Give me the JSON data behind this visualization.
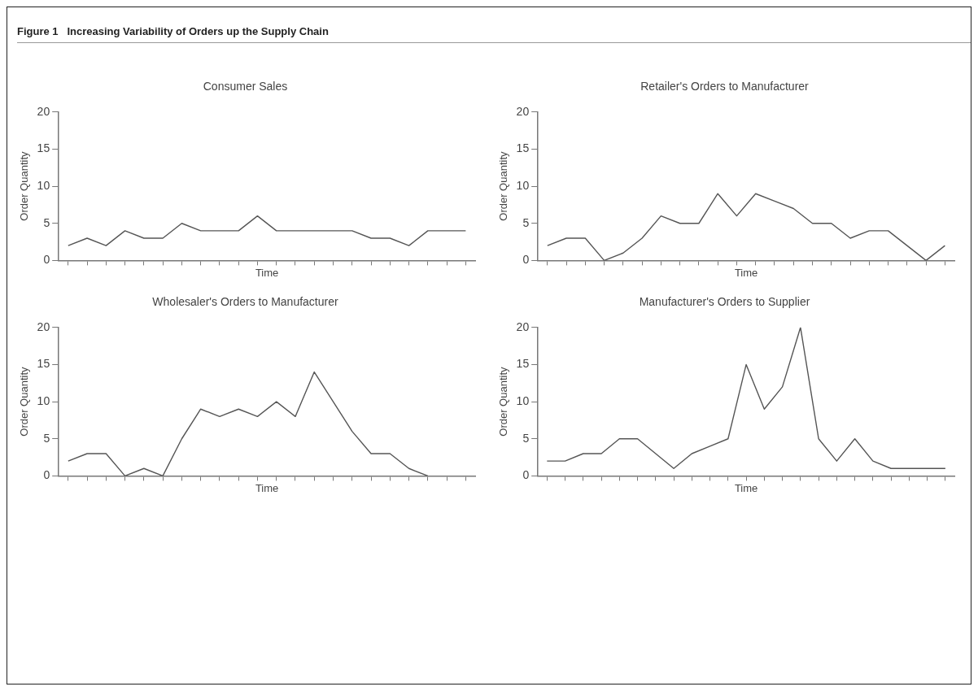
{
  "chart_data": [
    {
      "type": "line",
      "title": "Consumer Sales",
      "xlabel": "Time",
      "ylabel": "Order Quantity",
      "annotations": [
        "Figure 1   Increasing Variability of Orders up the Supply Chain"
      ],
      "categories": [
        null,
        null,
        null,
        null,
        null,
        null,
        null,
        null,
        null,
        null,
        null,
        null,
        null,
        null,
        null,
        null,
        null,
        null,
        null,
        null,
        null,
        null
      ],
      "series": [
        {
          "color": "#555555",
          "values": [
            2,
            3,
            2,
            4,
            3,
            3,
            5,
            4,
            4,
            4,
            6,
            4,
            4,
            4,
            4,
            4,
            3,
            3,
            2,
            4,
            4,
            4
          ]
        }
      ],
      "ylim": [
        0,
        20
      ],
      "yticks": [
        0,
        5,
        10,
        15,
        20
      ],
      "tick_labels": "y",
      "marker": "none"
    },
    {
      "type": "line",
      "title": "Retailer's Orders to Manufacturer",
      "xlabel": "Time",
      "ylabel": "Order Quantity",
      "categories": [
        null,
        null,
        null,
        null,
        null,
        null,
        null,
        null,
        null,
        null,
        null,
        null,
        null,
        null,
        null,
        null,
        null,
        null,
        null,
        null,
        null,
        null
      ],
      "series": [
        {
          "color": "#555555",
          "values": [
            2,
            3,
            3,
            0,
            1,
            3,
            6,
            5,
            5,
            9,
            6,
            9,
            8,
            7,
            5,
            5,
            3,
            4,
            4,
            2,
            0,
            2
          ]
        }
      ],
      "ylim": [
        0,
        20
      ],
      "yticks": [
        0,
        5,
        10,
        15,
        20
      ],
      "tick_labels": "y",
      "marker": "none"
    },
    {
      "type": "line",
      "title": "Wholesaler's Orders to Manufacturer",
      "xlabel": "Time",
      "ylabel": "Order Quantity",
      "categories": [
        null,
        null,
        null,
        null,
        null,
        null,
        null,
        null,
        null,
        null,
        null,
        null,
        null,
        null,
        null,
        null,
        null,
        null,
        null,
        null,
        null,
        null
      ],
      "series": [
        {
          "color": "#555555",
          "values": [
            2,
            3,
            3,
            0,
            1,
            0,
            5,
            9,
            8,
            9,
            8,
            10,
            8,
            14,
            10,
            6,
            3,
            3,
            1,
            0,
            null,
            null
          ]
        }
      ],
      "ylim": [
        0,
        20
      ],
      "yticks": [
        0,
        5,
        10,
        15,
        20
      ],
      "tick_labels": "y",
      "marker": "none"
    },
    {
      "type": "line",
      "title": "Manufacturer's Orders to Supplier",
      "xlabel": "Time",
      "ylabel": "Order Quantity",
      "categories": [
        null,
        null,
        null,
        null,
        null,
        null,
        null,
        null,
        null,
        null,
        null,
        null,
        null,
        null,
        null,
        null,
        null,
        null,
        null,
        null,
        null,
        null,
        null
      ],
      "series": [
        {
          "color": "#555555",
          "values": [
            2,
            2,
            3,
            3,
            5,
            5,
            3,
            1,
            3,
            4,
            5,
            15,
            9,
            12,
            20,
            5,
            2,
            5,
            2,
            1,
            1,
            1,
            1
          ]
        }
      ],
      "ylim": [
        0,
        20
      ],
      "yticks": [
        0,
        5,
        10,
        15,
        20
      ],
      "tick_labels": "y",
      "marker": "none"
    }
  ]
}
